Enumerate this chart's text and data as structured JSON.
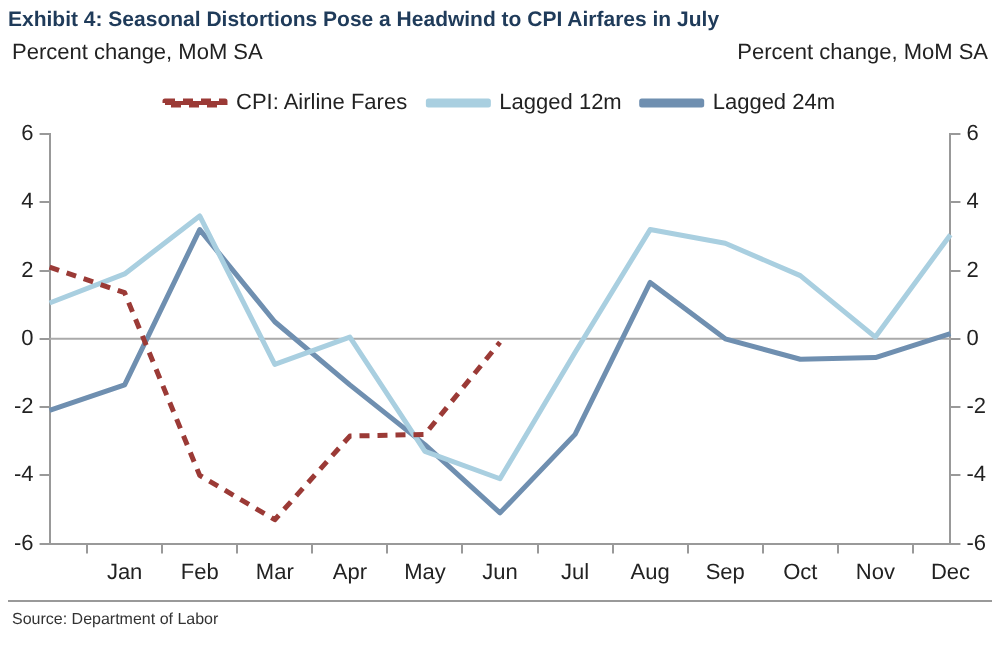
{
  "chart_data": {
    "type": "line",
    "title": "Exhibit 4: Seasonal Distortions Pose a Headwind to CPI Airfares in July",
    "ylabel": "Percent change, MoM SA",
    "y2label": "Percent change, MoM SA",
    "annotations": [
      "Source: Department of Labor"
    ],
    "series": [
      {
        "name": "CPI: Airline Fares",
        "color": "#9b3a36",
        "line_style": "dashed",
        "values": [
          2.1,
          1.35,
          -4.0,
          -5.3,
          -2.85,
          -2.8,
          -0.1,
          null,
          null,
          null,
          null,
          null,
          null
        ]
      },
      {
        "name": "Lagged 12m",
        "color": "#a9cfe0",
        "values": [
          1.05,
          1.9,
          3.6,
          -0.75,
          0.05,
          -3.3,
          -4.1,
          -0.4,
          3.2,
          2.8,
          1.85,
          0.05,
          3.05
        ]
      },
      {
        "name": "Lagged 24m",
        "color": "#6f8fb0",
        "values": [
          -2.1,
          -1.35,
          3.2,
          0.5,
          -1.35,
          -3.1,
          -5.1,
          -2.8,
          1.65,
          0,
          -0.6,
          -0.55,
          0.15
        ]
      }
    ],
    "categories": [
      null,
      "Jan",
      "Feb",
      "Mar",
      "Apr",
      "May",
      "Jun",
      "Jul",
      "Aug",
      "Sep",
      "Oct",
      "Nov",
      "Dec"
    ],
    "ylim": [
      -6,
      6
    ],
    "yticks": [
      -6,
      -4,
      -2,
      0,
      2,
      4,
      6
    ],
    "y2lim": [
      -6,
      6
    ],
    "y2ticks": [
      -6,
      -4,
      -2,
      0,
      2,
      4,
      6
    ],
    "ref_lines": [
      {
        "axis": "y",
        "value": 0,
        "color": "#aaaaaa"
      }
    ],
    "legend": "top",
    "marker": "none",
    "grid": false
  }
}
